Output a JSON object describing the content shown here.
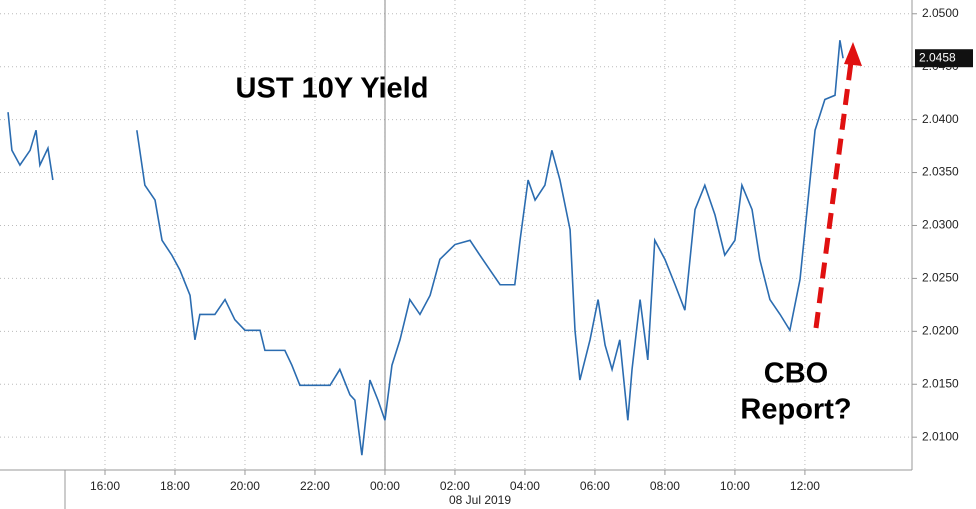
{
  "chart_data": {
    "type": "line",
    "title": "UST 10Y Yield",
    "annotation_lines": [
      "CBO",
      "Report?"
    ],
    "x_sublabel": "08 Jul 2019",
    "xlim": [
      -11,
      15.06
    ],
    "ylim": [
      2.0069,
      2.0513
    ],
    "xticks": [
      {
        "value": -8,
        "label": "16:00"
      },
      {
        "value": -6,
        "label": "18:00"
      },
      {
        "value": -4,
        "label": "20:00"
      },
      {
        "value": -2,
        "label": "22:00"
      },
      {
        "value": 0,
        "label": "00:00"
      },
      {
        "value": 2,
        "label": "02:00"
      },
      {
        "value": 4,
        "label": "04:00"
      },
      {
        "value": 6,
        "label": "06:00"
      },
      {
        "value": 8,
        "label": "08:00"
      },
      {
        "value": 10,
        "label": "10:00"
      },
      {
        "value": 12,
        "label": "12:00"
      }
    ],
    "yticks": [
      {
        "value": 2.01,
        "label": "2.0100"
      },
      {
        "value": 2.015,
        "label": "2.0150"
      },
      {
        "value": 2.02,
        "label": "2.0200"
      },
      {
        "value": 2.025,
        "label": "2.0250"
      },
      {
        "value": 2.03,
        "label": "2.0300"
      },
      {
        "value": 2.035,
        "label": "2.0350"
      },
      {
        "value": 2.04,
        "label": "2.0400"
      },
      {
        "value": 2.045,
        "label": "2.0450"
      },
      {
        "value": 2.05,
        "label": "2.0500"
      }
    ],
    "grid": true,
    "series": [
      {
        "color": "#2b6cb0",
        "x": [
          -10.77,
          -10.66,
          -10.43,
          -10.14,
          -9.97,
          -9.86,
          -9.63,
          -9.49,
          null,
          -7.09,
          -6.86,
          -6.57,
          -6.37,
          -6.09,
          -5.86,
          -5.57,
          -5.43,
          -5.29,
          -4.86,
          -4.57,
          -4.29,
          -4,
          -3.57,
          -3.43,
          -2.86,
          -2.66,
          -2.43,
          -1.57,
          -1.29,
          -1,
          -0.86,
          -0.66,
          -0.43,
          -0.2,
          0,
          0.2,
          0.43,
          0.71,
          1,
          1.29,
          1.57,
          2,
          2.43,
          2.71,
          3,
          3.29,
          3.71,
          3.86,
          4.09,
          4.29,
          4.57,
          4.77,
          5,
          5.29,
          5.43,
          5.57,
          5.86,
          6.09,
          6.29,
          6.49,
          6.71,
          6.94,
          7.06,
          7.29,
          7.51,
          7.71,
          8,
          8.29,
          8.57,
          8.86,
          9.14,
          9.43,
          9.71,
          10,
          10.2,
          10.49,
          10.71,
          11,
          11.29,
          11.57,
          11.86,
          12.09,
          12.29,
          12.57,
          12.86,
          13,
          13.09
        ],
        "values": [
          2.0407,
          2.0371,
          2.0357,
          2.0371,
          2.039,
          2.0357,
          2.0373,
          2.0343,
          null,
          2.039,
          2.0338,
          2.0324,
          2.0286,
          2.0272,
          2.0258,
          2.0234,
          2.0192,
          2.0216,
          2.0216,
          2.023,
          2.0211,
          2.0201,
          2.0201,
          2.0182,
          2.0182,
          2.0168,
          2.0149,
          2.0149,
          2.0164,
          2.014,
          2.0135,
          2.0083,
          2.0154,
          2.0135,
          2.0116,
          2.0168,
          2.0192,
          2.023,
          2.0216,
          2.0234,
          2.0268,
          2.0282,
          2.0286,
          2.0272,
          2.0258,
          2.0244,
          2.0244,
          2.0286,
          2.0343,
          2.0324,
          2.0338,
          2.0371,
          2.0343,
          2.0296,
          2.0201,
          2.0154,
          2.0192,
          2.023,
          2.0187,
          2.0164,
          2.0192,
          2.0116,
          2.0164,
          2.023,
          2.0173,
          2.0286,
          2.0268,
          2.0244,
          2.022,
          2.0315,
          2.0338,
          2.031,
          2.0272,
          2.0286,
          2.0338,
          2.0315,
          2.0268,
          2.023,
          2.0216,
          2.0201,
          2.0249,
          2.0324,
          2.039,
          2.0419,
          2.0423,
          2.0475,
          2.0458
        ]
      }
    ]
  }
}
